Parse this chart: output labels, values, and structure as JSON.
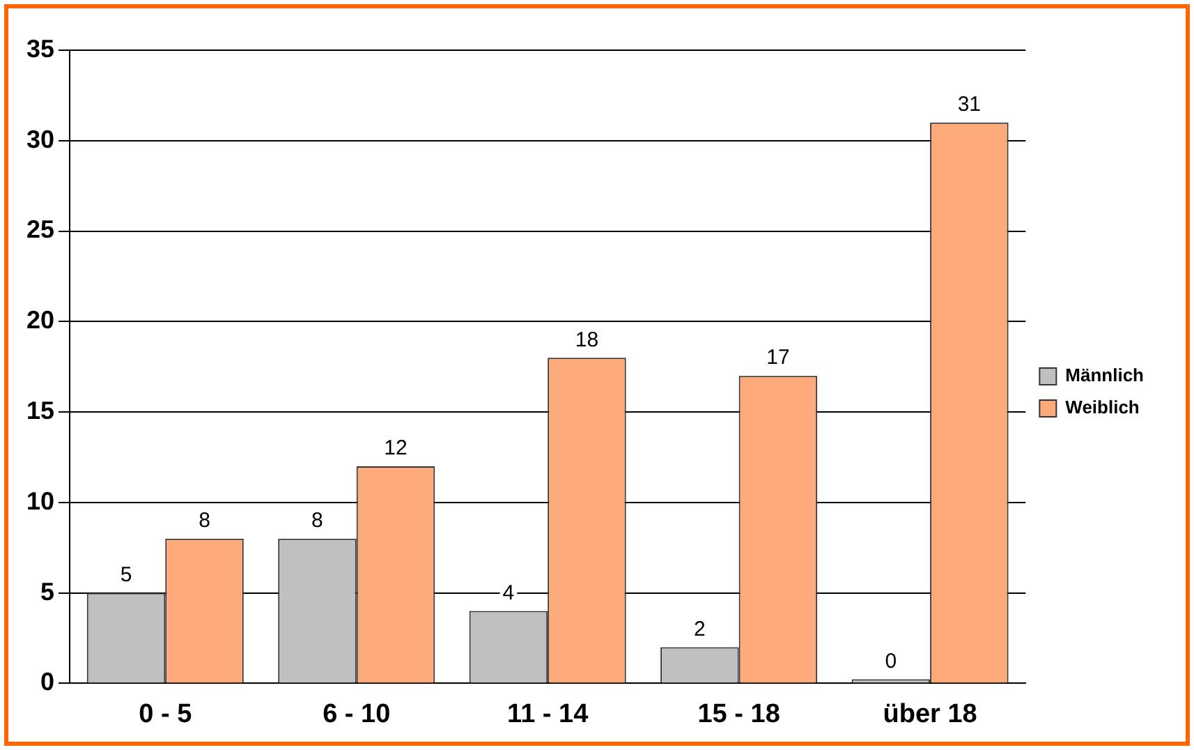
{
  "chart_data": {
    "type": "bar",
    "categories": [
      "0 - 5",
      "6 - 10",
      "11 - 14",
      "15 - 18",
      "über 18"
    ],
    "series": [
      {
        "name": "Männlich",
        "color": "#c0c0c0",
        "values": [
          5,
          8,
          4,
          2,
          0
        ]
      },
      {
        "name": "Weiblich",
        "color": "#ffaa7a",
        "values": [
          8,
          12,
          18,
          17,
          31
        ]
      }
    ],
    "ylim": [
      0,
      35
    ],
    "yticks": [
      0,
      5,
      10,
      15,
      20,
      25,
      30,
      35
    ],
    "grid": "y",
    "legend": "right",
    "data_labels": true
  }
}
